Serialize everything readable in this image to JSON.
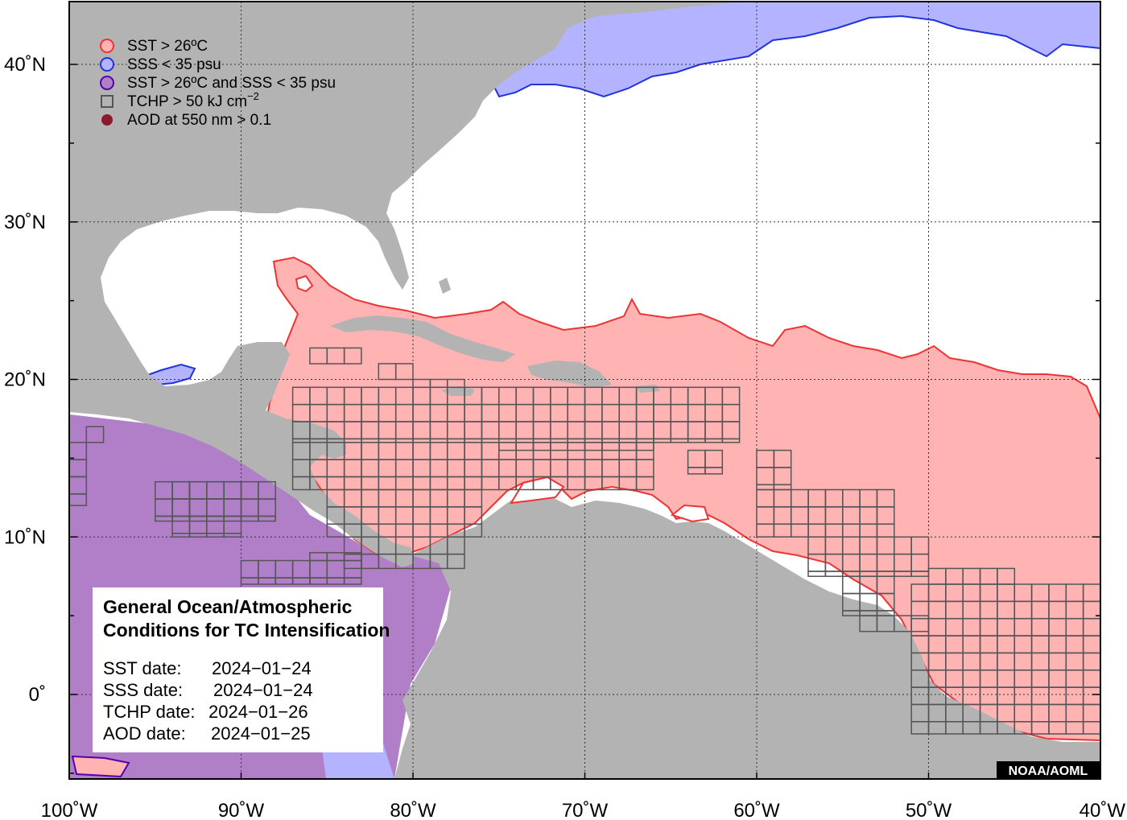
{
  "map": {
    "lon_range": [
      -100,
      -40
    ],
    "lat_range": [
      -5,
      44
    ],
    "x_ticks": [
      {
        "lon": -100,
        "label": "100˚W"
      },
      {
        "lon": -90,
        "label": "90˚W"
      },
      {
        "lon": -80,
        "label": "80˚W"
      },
      {
        "lon": -70,
        "label": "70˚W"
      },
      {
        "lon": -60,
        "label": "60˚W"
      },
      {
        "lon": -50,
        "label": "50˚W"
      },
      {
        "lon": -40,
        "label": "40˚W"
      }
    ],
    "y_ticks": [
      {
        "lat": 40,
        "label": "40˚N"
      },
      {
        "lat": 30,
        "label": "30˚N"
      },
      {
        "lat": 20,
        "label": "20˚N"
      },
      {
        "lat": 10,
        "label": "10˚N"
      },
      {
        "lat": 0,
        "label": "0˚"
      }
    ],
    "colors": {
      "land": "#b3b3b3",
      "ocean": "#ffffff",
      "sst": "#ffb3b3",
      "sst_edge": "#ee3333",
      "sss": "#b3b3ff",
      "sss_edge": "#2233dd",
      "both": "#b07fc8",
      "both_edge": "#5500aa",
      "tchp_box": "#555555",
      "aod": "#8b1a2b"
    }
  },
  "legend": {
    "items": [
      {
        "label": "SST > 26ºC",
        "symbol": "sst"
      },
      {
        "label": "SSS < 35 psu",
        "symbol": "sss"
      },
      {
        "label": "SST > 26ºC and SSS < 35 psu",
        "symbol": "both"
      },
      {
        "label": "TCHP > 50 kJ cm",
        "sup": "−2",
        "symbol": "tchp"
      },
      {
        "label": "AOD at 550 nm > 0.1",
        "symbol": "aod"
      }
    ]
  },
  "info_box": {
    "title_line1": "General Ocean/Atmospheric",
    "title_line2": "Conditions for TC Intensification",
    "dates": [
      {
        "label": "SST date:",
        "value": "2024−01−24"
      },
      {
        "label": "SSS date:",
        "value": "2024−01−24"
      },
      {
        "label": "TCHP date:",
        "value": "2024−01−26"
      },
      {
        "label": "AOD date:",
        "value": "2024−01−25"
      }
    ]
  },
  "credit": "NOAA/AOML"
}
